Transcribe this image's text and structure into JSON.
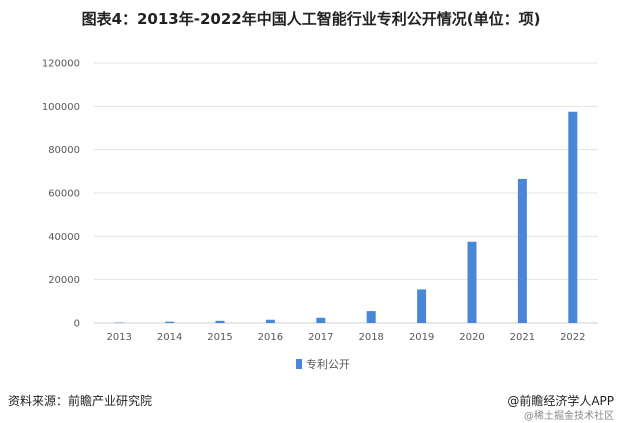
{
  "header": {
    "title": "图表4：2013年-2022年中国人工智能行业专利公开情况(单位：项)"
  },
  "footer": {
    "source": "资料来源：前瞻产业研究院",
    "brand": "@前瞻经济学人APP",
    "sub": "@稀土掘金技术社区"
  },
  "chart_data": {
    "type": "bar",
    "title": "图表4：2013年-2022年中国人工智能行业专利公开情况(单位：项)",
    "xlabel": "",
    "ylabel": "",
    "categories": [
      "2013",
      "2014",
      "2015",
      "2016",
      "2017",
      "2018",
      "2019",
      "2020",
      "2021",
      "2022"
    ],
    "series": [
      {
        "name": "专利公开",
        "values": [
          200,
          600,
          1000,
          1500,
          2400,
          5500,
          15500,
          37500,
          66500,
          97500
        ],
        "color": "#4a86d8"
      }
    ],
    "yticks": [
      "0",
      "20000",
      "40000",
      "60000",
      "80000",
      "100000",
      "120000"
    ],
    "ylim": [
      0,
      120000
    ],
    "grid": true,
    "legend": "bottom-center"
  }
}
